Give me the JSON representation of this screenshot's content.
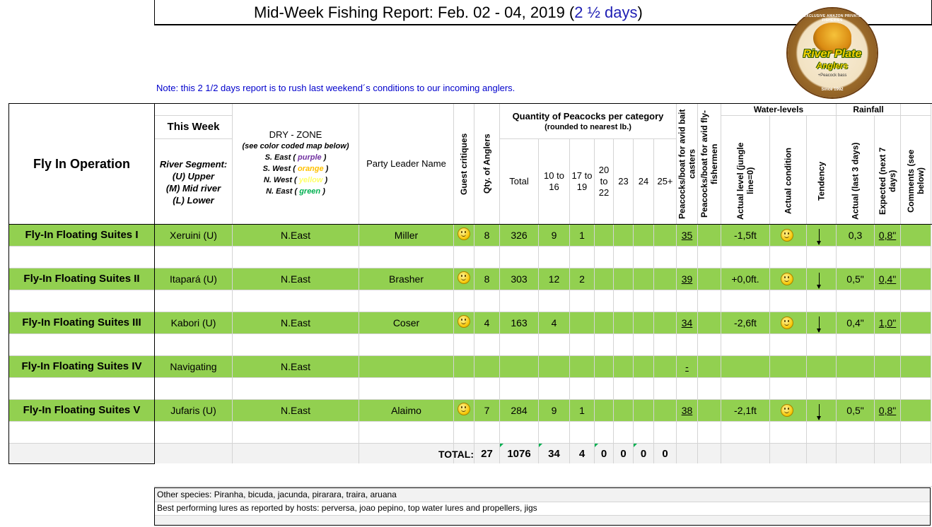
{
  "title": {
    "main": "Mid-Week Fishing Report: Feb. 02 - 04, 2019 (",
    "highlight": "2 ½ days",
    "close": ")"
  },
  "note": "Note:  this 2 1/2 days report is to rush last weekend´s conditions to our incoming anglers.",
  "logo": {
    "top_text": "EXCLUSIVE AMAZON PRIVATE FISHERIES",
    "name_line1": "River Plate",
    "name_line2": "Anglers",
    "tagline": "+Peacock bass",
    "since": "Since 1992"
  },
  "headers": {
    "operation": "Fly In Operation",
    "this_week": "This Week",
    "river_segment": "River Segment:",
    "upper": "(U) Upper",
    "mid": "(M) Mid river",
    "lower": "(L) Lower",
    "dry_zone": "DRY - ZONE",
    "map_note": "(see color coded map below)",
    "se": "S. East ( ",
    "se_c": "purple",
    "sw": "S. West ( ",
    "sw_c": "orange",
    "nw": "N. West ( ",
    "nw_c": "yellow",
    "ne": "N. East ( ",
    "ne_c": "green",
    "close_paren": " )",
    "party_leader": "Party Leader Name",
    "guest_critiques": "Guest critiques",
    "qty_anglers": "Qty. of Anglers",
    "quantity_title": "Quantity of Peacocks per category",
    "quantity_sub": "(rounded to nearest lb.)",
    "total": "Total",
    "c10": "10 to 16",
    "c17": "17 to 19",
    "c20": "20 to 22",
    "c23": "23",
    "c24": "24",
    "c25": "25+",
    "pcb_bait": "Peacocks/boat for avid bait casters",
    "pcb_fly": "Peacocks/boat for avid fly-fishermen",
    "water_levels": "Water-levels",
    "actual_level": "Actual level (jungle line=0)",
    "actual_condition": "Actual condition",
    "tendency": "Tendency",
    "rainfall": "Rainfall",
    "actual_rain": "Actual (last 3 days)",
    "expected_rain": "Expected (next 7 days)",
    "comments": "Comments (see below)"
  },
  "rows": [
    {
      "name": "Fly-In Floating Suites I",
      "segment": "Xeruini (U)",
      "zone": "N.East",
      "leader": "Miller",
      "smile": true,
      "anglers": "8",
      "total": "326",
      "c10": "9",
      "c17": "1",
      "bait": "35",
      "level": "-1,5ft",
      "cond": true,
      "tend": true,
      "rain": "0,3",
      "exp": "0,8\""
    },
    {
      "name": "Fly-In Floating Suites II",
      "segment": "Itapará (U)",
      "zone": "N.East",
      "leader": "Brasher",
      "smile": true,
      "anglers": "8",
      "total": "303",
      "c10": "12",
      "c17": "2",
      "bait": "39",
      "level": "+0,0ft.",
      "cond": true,
      "tend": true,
      "rain": "0,5\"",
      "exp": "0,4\""
    },
    {
      "name": "Fly-In Floating Suites III",
      "segment": "Kabori (U)",
      "zone": "N.East",
      "leader": "Coser",
      "smile": true,
      "anglers": "4",
      "total": "163",
      "c10": "4",
      "c17": "",
      "bait": "34",
      "level": "-2,6ft",
      "cond": true,
      "tend": true,
      "rain": "0,4\"",
      "exp": "1,0\""
    },
    {
      "name": "Fly-In Floating Suites IV",
      "segment": "Navigating",
      "zone": "N.East",
      "leader": "",
      "smile": false,
      "anglers": "",
      "total": "",
      "c10": "",
      "c17": "",
      "bait": "-",
      "level": "",
      "cond": false,
      "tend": false,
      "rain": "",
      "exp": ""
    },
    {
      "name": "Fly-In Floating Suites V",
      "segment": "Jufaris (U)",
      "zone": "N.East",
      "leader": "Alaimo",
      "smile": true,
      "anglers": "7",
      "total": "284",
      "c10": "9",
      "c17": "1",
      "bait": "38",
      "level": "-2,1ft",
      "cond": true,
      "tend": true,
      "rain": "0,5\"",
      "exp": "0,8\""
    }
  ],
  "totals": {
    "label": "TOTAL:",
    "anglers": "27",
    "total": "1076",
    "c10": "34",
    "c17": "4",
    "c20": "0",
    "c23": "0",
    "c24": "0",
    "c25": "0"
  },
  "footer": {
    "species": "Other species: Piranha, bicuda, jacunda, pirarara, traira, aruana",
    "lures": "Best performing lures as reported by hosts: perversa, joao pepino, top water lures and propellers, jigs"
  },
  "colors": {
    "row_green": "#92d050",
    "note_blue": "#0000cc",
    "purple": "#7030a0",
    "orange": "#ffc000",
    "yellow": "#ffff66",
    "green": "#00b050"
  }
}
